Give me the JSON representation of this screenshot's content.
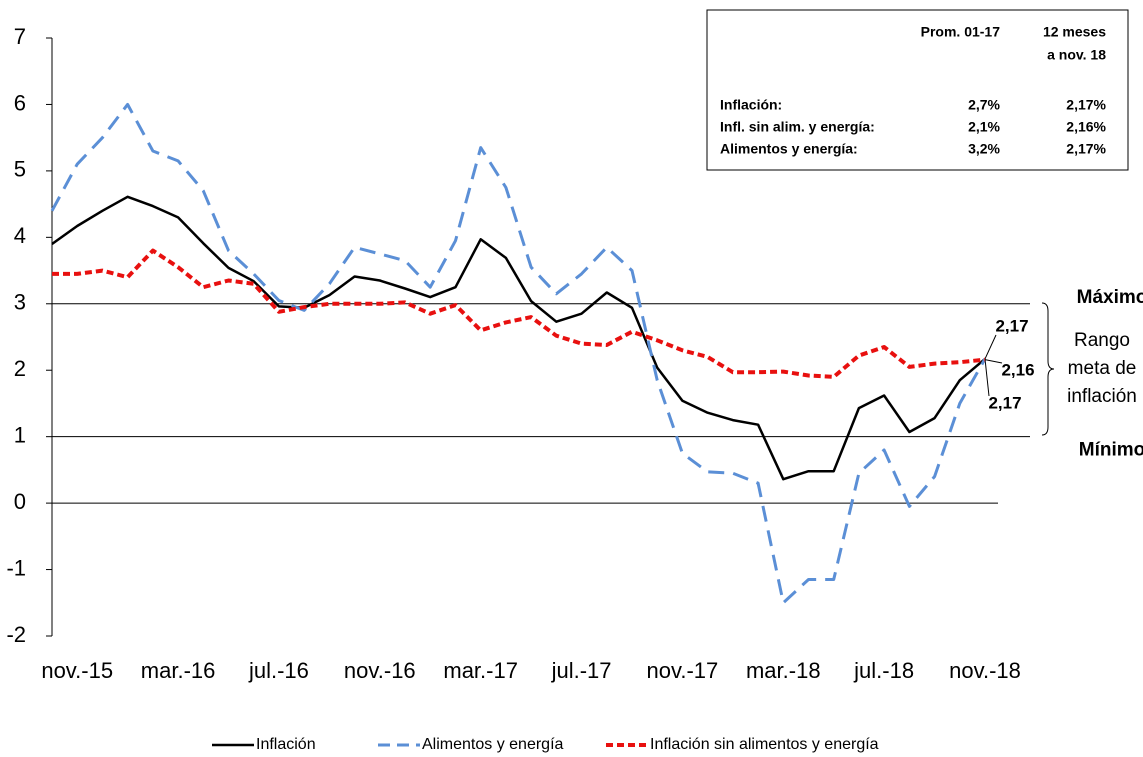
{
  "chart_data": {
    "type": "line",
    "categories": [
      null,
      "nov.-15",
      null,
      null,
      null,
      "mar.-16",
      null,
      null,
      null,
      "jul.-16",
      null,
      null,
      null,
      "nov.-16",
      null,
      null,
      null,
      "mar.-17",
      null,
      null,
      null,
      "jul.-17",
      null,
      null,
      null,
      "nov.-17",
      null,
      null,
      null,
      "mar.-18",
      null,
      null,
      null,
      "jul.-18",
      null,
      null,
      null,
      "nov.-18"
    ],
    "series": [
      {
        "name": "Inflación",
        "color": "#000000",
        "style": "solid",
        "values": [
          3.9,
          4.17,
          4.4,
          4.61,
          4.47,
          4.3,
          3.91,
          3.54,
          3.34,
          2.96,
          2.94,
          3.13,
          3.41,
          3.35,
          3.23,
          3.1,
          3.25,
          3.97,
          3.69,
          3.04,
          2.73,
          2.85,
          3.17,
          2.94,
          2.04,
          1.54,
          1.36,
          1.25,
          1.18,
          0.36,
          0.48,
          0.48,
          1.43,
          1.62,
          1.07,
          1.28,
          1.85,
          2.17
        ],
        "value_labels": [
          null,
          null,
          null,
          null,
          null,
          null,
          null,
          null,
          null,
          null,
          null,
          null,
          null,
          null,
          null,
          null,
          null,
          null,
          null,
          null,
          null,
          null,
          null,
          null,
          null,
          null,
          null,
          null,
          null,
          null,
          null,
          null,
          null,
          null,
          null,
          null,
          null,
          "2,17"
        ]
      },
      {
        "name": "Alimentos y energía",
        "color": "#5b8fd6",
        "style": "dashed",
        "values": [
          4.4,
          5.1,
          5.5,
          6.0,
          5.3,
          5.15,
          4.7,
          3.8,
          3.45,
          3.05,
          2.9,
          3.3,
          3.85,
          3.75,
          3.65,
          3.25,
          3.95,
          5.35,
          4.75,
          3.55,
          3.15,
          3.45,
          3.85,
          3.5,
          1.85,
          0.75,
          0.47,
          0.45,
          0.3,
          -1.5,
          -1.15,
          -1.15,
          0.45,
          0.8,
          -0.05,
          0.4,
          1.5,
          2.17
        ],
        "value_labels": [
          null,
          null,
          null,
          null,
          null,
          null,
          null,
          null,
          null,
          null,
          null,
          null,
          null,
          null,
          null,
          null,
          null,
          null,
          null,
          null,
          null,
          null,
          null,
          null,
          null,
          null,
          null,
          null,
          null,
          null,
          null,
          null,
          null,
          null,
          null,
          null,
          null,
          "2,17"
        ]
      },
      {
        "name": "Inflación sin alimentos y energía",
        "color": "#e8100f",
        "style": "dotted",
        "values": [
          3.45,
          3.45,
          3.5,
          3.4,
          3.8,
          3.55,
          3.25,
          3.35,
          3.3,
          2.88,
          2.95,
          3.0,
          3.0,
          3.0,
          3.02,
          2.85,
          2.98,
          2.6,
          2.72,
          2.8,
          2.52,
          2.4,
          2.38,
          2.58,
          2.45,
          2.3,
          2.2,
          1.97,
          1.97,
          1.98,
          1.92,
          1.9,
          2.22,
          2.35,
          2.05,
          2.1,
          2.12,
          2.16
        ],
        "value_labels": [
          null,
          null,
          null,
          null,
          null,
          null,
          null,
          null,
          null,
          null,
          null,
          null,
          null,
          null,
          null,
          null,
          null,
          null,
          null,
          null,
          null,
          null,
          null,
          null,
          null,
          null,
          null,
          null,
          null,
          null,
          null,
          null,
          null,
          null,
          null,
          null,
          null,
          "2,16"
        ]
      }
    ],
    "ylim": [
      -2,
      7
    ],
    "yticks": [
      -2,
      -1,
      0,
      1,
      2,
      3,
      4,
      5,
      6,
      7
    ],
    "reference_lines": [
      {
        "value": 3,
        "label": "Máximo"
      },
      {
        "value": 1,
        "label": "Mínimo"
      }
    ],
    "range_label": [
      "Rango",
      "meta de",
      "inflación"
    ],
    "summary_table": {
      "columns": [
        [
          "Prom. 01-17"
        ],
        [
          "12 meses",
          "a nov. 18"
        ]
      ],
      "rows": [
        [
          "Inflación:",
          "2,7%",
          "2,17%"
        ],
        [
          "Infl. sin alim. y energía:",
          "2,1%",
          "2,16%"
        ],
        [
          "Alimentos y energía:",
          "3,2%",
          "2,17%"
        ]
      ]
    },
    "legend": "bottom"
  }
}
